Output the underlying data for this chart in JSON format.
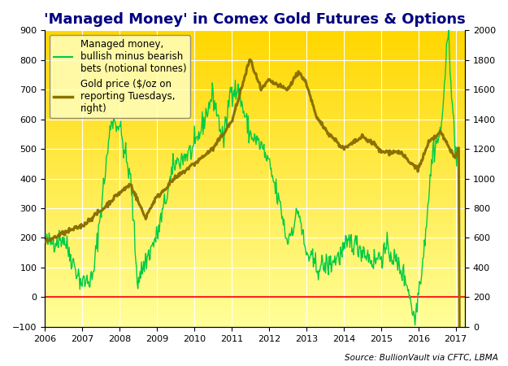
{
  "title": "'Managed Money' in Comex Gold Futures & Options",
  "source_text": "Source: BullionVault via CFTC, LBMA",
  "left_ylim": [
    -100,
    900
  ],
  "right_ylim": [
    0,
    2000
  ],
  "left_yticks": [
    -100,
    0,
    100,
    200,
    300,
    400,
    500,
    600,
    700,
    800,
    900
  ],
  "right_yticks": [
    0,
    200,
    400,
    600,
    800,
    1000,
    1200,
    1400,
    1600,
    1800,
    2000
  ],
  "xlim_start": 2006.0,
  "xlim_end": 2017.25,
  "xticks": [
    2006,
    2007,
    2008,
    2009,
    2010,
    2011,
    2012,
    2013,
    2014,
    2015,
    2016,
    2017
  ],
  "net_long_color": "#00cc44",
  "gold_price_color": "#8B7000",
  "zero_line_color": "#ff2222",
  "background_top_color": "#FFD700",
  "background_bottom_color": "#FFFF99",
  "legend_labels": [
    "Managed money,\nbullish minus bearish\nbets (notional tonnes)",
    "Gold price ($/oz on\nreporting Tuesdays,\nright)"
  ],
  "title_fontsize": 13,
  "legend_fontsize": 8.5
}
